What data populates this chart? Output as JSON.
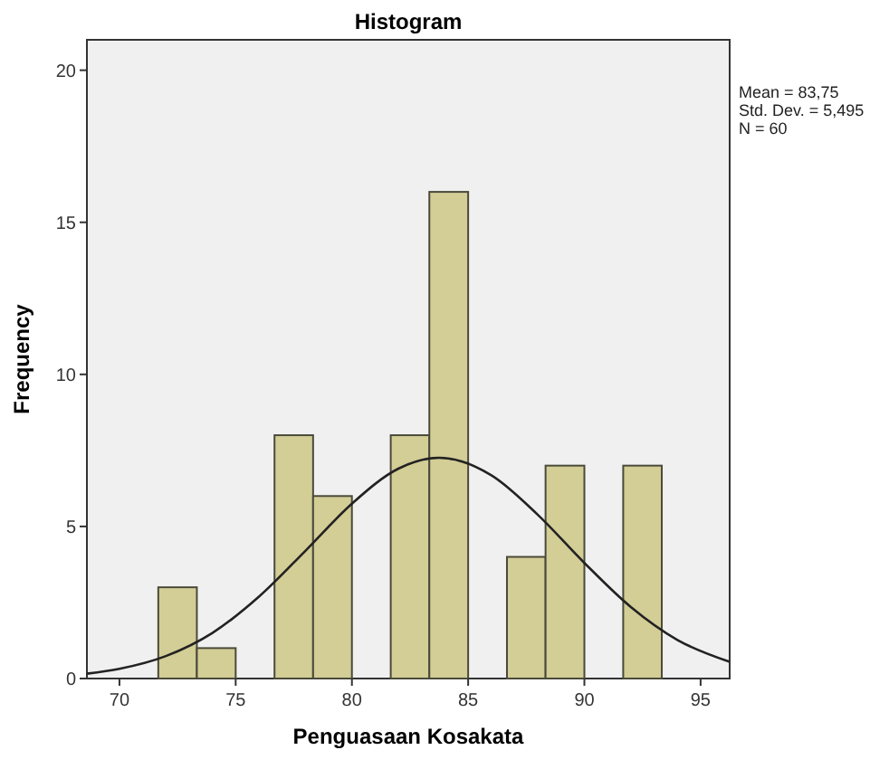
{
  "chart_data": {
    "type": "histogram",
    "title": "Histogram",
    "xlabel": "Penguasaan Kosakata",
    "ylabel": "Frequency",
    "bins": [
      71.67,
      73.33,
      75,
      76.67,
      78.33,
      80,
      81.67,
      83.33,
      85,
      86.67,
      88.33,
      90,
      91.67,
      93.33
    ],
    "values": [
      3,
      1,
      0,
      8,
      6,
      0,
      8,
      16,
      0,
      4,
      7,
      0,
      7
    ],
    "color": "#d3cd96",
    "series": [
      {
        "type": "line",
        "color": "#222222",
        "x": [
          68.6,
          70,
          72,
          74,
          76,
          78,
          80,
          82,
          83.75,
          86,
          88,
          90,
          92,
          94,
          96.25
        ],
        "values": [
          0.16,
          0.32,
          0.74,
          1.5,
          2.69,
          4.2,
          5.75,
          6.9,
          7.26,
          6.68,
          5.38,
          3.8,
          2.35,
          1.27,
          0.55
        ]
      }
    ],
    "xlim": [
      68.6,
      96.25
    ],
    "ylim": [
      0,
      21
    ],
    "xticks": [
      70,
      75,
      80,
      85,
      90,
      95
    ],
    "yticks": [
      0,
      5,
      10,
      15,
      20
    ],
    "annotations": [
      "Mean = 83,75",
      "Std. Dev. = 5,495",
      "N = 60"
    ],
    "grid": false
  }
}
